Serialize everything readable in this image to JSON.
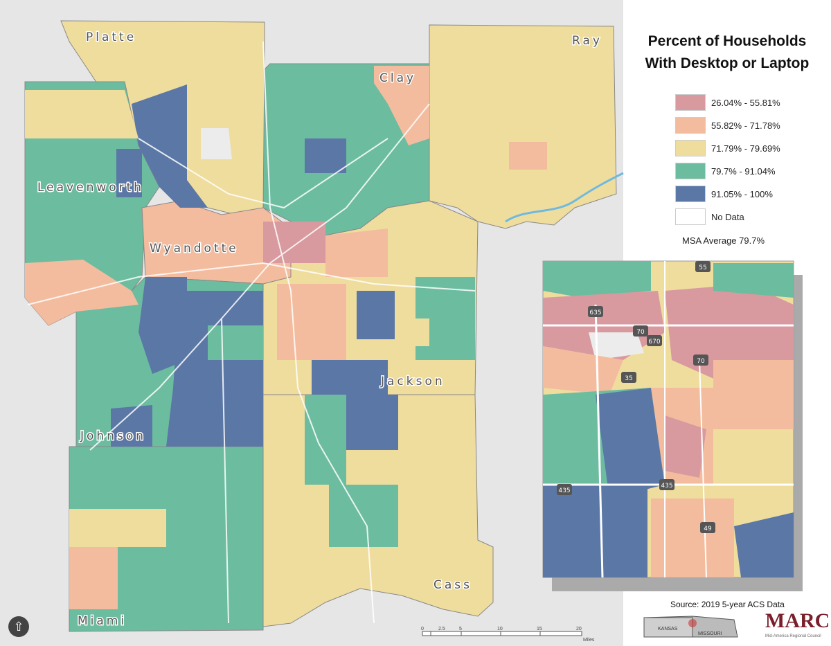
{
  "title_line1": "Percent of Households",
  "title_line2": "With Desktop or Laptop",
  "legend": [
    {
      "label": "26.04% - 55.81%",
      "color": "#d99a9f"
    },
    {
      "label": "55.82% - 71.78%",
      "color": "#f4bc9e"
    },
    {
      "label": "71.79% - 79.69%",
      "color": "#efdd9e"
    },
    {
      "label": "79.7% - 91.04%",
      "color": "#6cbca0"
    },
    {
      "label": "91.05% - 100%",
      "color": "#5a77a6"
    },
    {
      "label": "No Data",
      "color": "#ffffff"
    }
  ],
  "msa_average": "MSA Average 79.7%",
  "source": "Source: 2019 5-year ACS Data",
  "counties": [
    "Platte",
    "Ray",
    "Clay",
    "Leavenworth",
    "Wyandotte",
    "Jackson",
    "Johnson",
    "Cass",
    "Miami"
  ],
  "inset_highways": [
    "635",
    "70",
    "670",
    "70",
    "35",
    "55",
    "435",
    "435",
    "49"
  ],
  "locator_map": {
    "kansas": "KANSAS",
    "missouri": "MISSOURI"
  },
  "logo": {
    "name": "MARC",
    "subtitle": "Mid-America Regional Council"
  },
  "scale_bar": {
    "ticks": [
      "0",
      "2.5",
      "5",
      "10",
      "15",
      "20"
    ],
    "unit": "Miles"
  },
  "north_arrow_icon": "north-arrow-icon"
}
